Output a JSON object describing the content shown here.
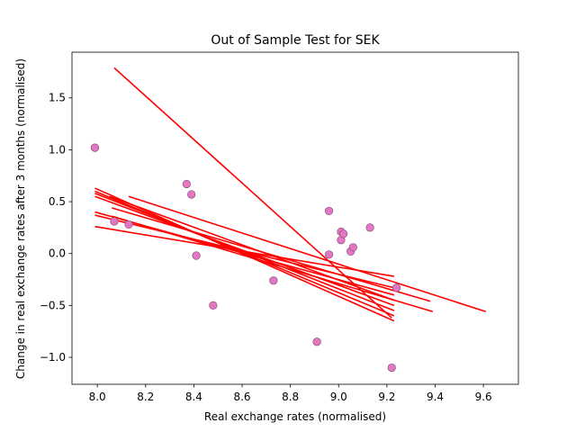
{
  "chart_data": {
    "type": "scatter",
    "title": "Out of Sample Test for SEK",
    "xlabel": "Real exchange rates (normalised)",
    "ylabel": "Change in real exchange rates after 3 months (normalised)",
    "xlim": [
      7.895,
      9.745
    ],
    "ylim": [
      -1.26,
      1.94
    ],
    "xticks": [
      8.0,
      8.2,
      8.4,
      8.6,
      8.8,
      9.0,
      9.2,
      9.4,
      9.6
    ],
    "xtick_labels": [
      "8.0",
      "8.2",
      "8.4",
      "8.6",
      "8.8",
      "9.0",
      "9.2",
      "9.4",
      "9.6"
    ],
    "yticks": [
      -1.0,
      -0.5,
      0.0,
      0.5,
      1.0,
      1.5
    ],
    "ytick_labels": [
      "−1.0",
      "−0.5",
      "0.0",
      "0.5",
      "1.0",
      "1.5"
    ],
    "grid": false,
    "legend": false,
    "point_color": "#e377c2",
    "line_color": "#ff0000",
    "points": [
      {
        "x": 7.99,
        "y": 1.02
      },
      {
        "x": 8.07,
        "y": 0.31
      },
      {
        "x": 8.13,
        "y": 0.28
      },
      {
        "x": 8.37,
        "y": 0.67
      },
      {
        "x": 8.39,
        "y": 0.57
      },
      {
        "x": 8.41,
        "y": -0.02
      },
      {
        "x": 8.48,
        "y": -0.5
      },
      {
        "x": 8.73,
        "y": -0.26
      },
      {
        "x": 8.91,
        "y": -0.85
      },
      {
        "x": 8.96,
        "y": 0.41
      },
      {
        "x": 8.96,
        "y": -0.01
      },
      {
        "x": 9.01,
        "y": 0.21
      },
      {
        "x": 9.01,
        "y": 0.13
      },
      {
        "x": 9.02,
        "y": 0.19
      },
      {
        "x": 9.05,
        "y": 0.02
      },
      {
        "x": 9.06,
        "y": 0.06
      },
      {
        "x": 9.13,
        "y": 0.25
      },
      {
        "x": 9.22,
        "y": -1.1
      },
      {
        "x": 9.24,
        "y": -0.33
      }
    ],
    "fit_lines": [
      {
        "x": [
          8.07,
          9.22
        ],
        "y": [
          1.79,
          -0.62
        ]
      },
      {
        "x": [
          7.99,
          9.23
        ],
        "y": [
          0.63,
          -0.65
        ]
      },
      {
        "x": [
          7.99,
          9.23
        ],
        "y": [
          0.6,
          -0.6
        ]
      },
      {
        "x": [
          7.99,
          9.23
        ],
        "y": [
          0.58,
          -0.55
        ]
      },
      {
        "x": [
          7.99,
          9.23
        ],
        "y": [
          0.55,
          -0.5
        ]
      },
      {
        "x": [
          7.99,
          9.23
        ],
        "y": [
          0.4,
          -0.4
        ]
      },
      {
        "x": [
          7.99,
          9.23
        ],
        "y": [
          0.37,
          -0.33
        ]
      },
      {
        "x": [
          7.99,
          9.23
        ],
        "y": [
          0.26,
          -0.22
        ]
      },
      {
        "x": [
          8.06,
          9.38
        ],
        "y": [
          0.44,
          -0.46
        ]
      },
      {
        "x": [
          8.06,
          9.39
        ],
        "y": [
          0.36,
          -0.56
        ]
      },
      {
        "x": [
          8.13,
          9.61
        ],
        "y": [
          0.55,
          -0.56
        ]
      },
      {
        "x": [
          8.05,
          9.23
        ],
        "y": [
          0.55,
          -0.45
        ]
      }
    ]
  }
}
